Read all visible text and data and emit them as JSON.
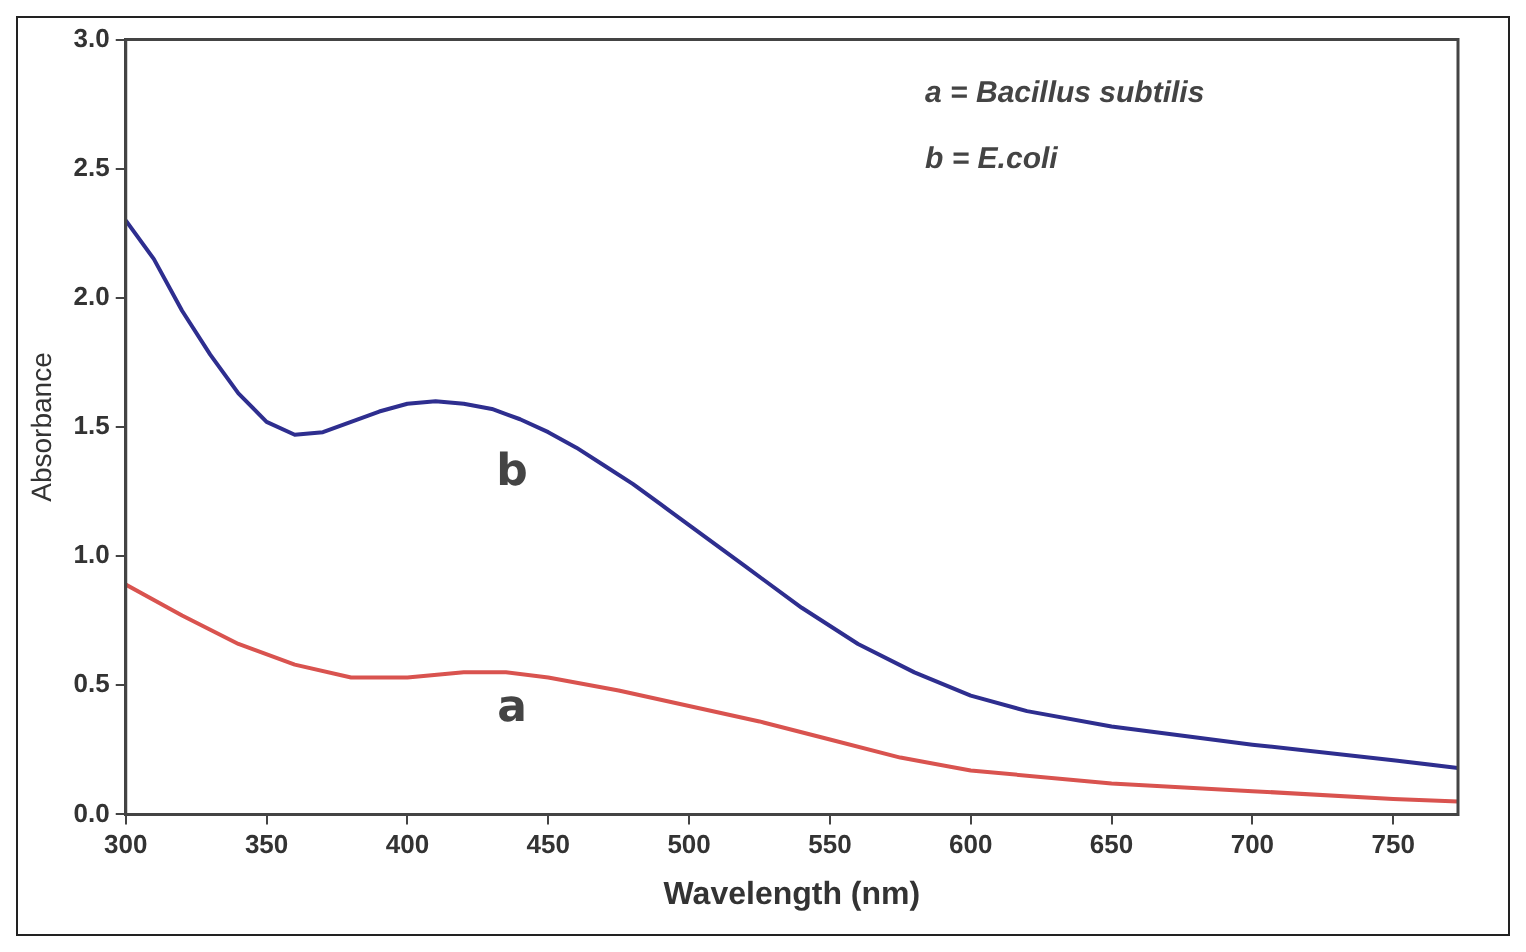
{
  "chart_data": {
    "type": "line",
    "xlabel": "Wavelength (nm)",
    "ylabel": "Absorbance",
    "xlim": [
      300,
      773
    ],
    "xticks": [
      300,
      350,
      400,
      450,
      500,
      550,
      600,
      650,
      700,
      750
    ],
    "ylim": [
      0,
      3
    ],
    "yticks": [
      {
        "value": 0,
        "label": "0.0"
      },
      0.5,
      {
        "value": 1,
        "label": "1.0"
      },
      1.5,
      {
        "value": 2,
        "label": "2.0"
      },
      2.5,
      {
        "value": 3,
        "label": "3.0"
      }
    ],
    "grid": false,
    "legend": false,
    "marker": "none",
    "line_style": "solid",
    "series": [
      {
        "color": "#2e2e8f",
        "x": [
          300,
          310,
          320,
          330,
          340,
          350,
          360,
          370,
          380,
          390,
          400,
          410,
          420,
          430,
          440,
          450,
          460,
          470,
          480,
          490,
          500,
          520,
          540,
          560,
          580,
          600,
          620,
          650,
          700,
          750,
          773
        ],
        "values": [
          2.3,
          2.15,
          1.95,
          1.78,
          1.63,
          1.52,
          1.47,
          1.48,
          1.52,
          1.56,
          1.59,
          1.6,
          1.59,
          1.57,
          1.53,
          1.48,
          1.42,
          1.35,
          1.28,
          1.2,
          1.12,
          0.96,
          0.8,
          0.66,
          0.55,
          0.46,
          0.4,
          0.34,
          0.27,
          0.21,
          0.18
        ]
      },
      {
        "color": "#d9534f",
        "x": [
          300,
          320,
          340,
          360,
          380,
          400,
          420,
          435,
          450,
          475,
          500,
          525,
          550,
          575,
          600,
          650,
          700,
          750,
          773
        ],
        "values": [
          0.89,
          0.77,
          0.66,
          0.58,
          0.53,
          0.53,
          0.55,
          0.55,
          0.53,
          0.48,
          0.42,
          0.36,
          0.29,
          0.22,
          0.17,
          0.12,
          0.09,
          0.06,
          0.05
        ]
      }
    ],
    "annotations": [
      "a = Bacillus subtilis",
      "b = E.coli",
      "b",
      "a"
    ]
  }
}
